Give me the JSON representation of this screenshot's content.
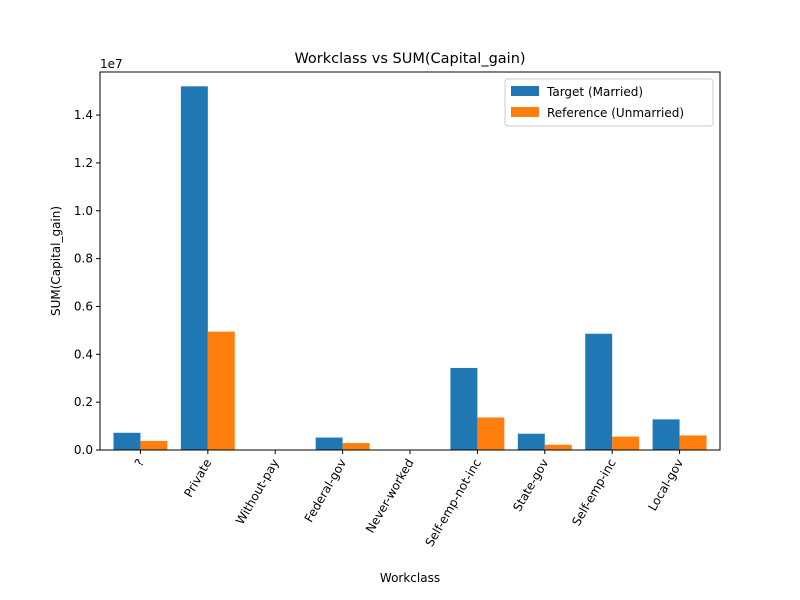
{
  "chart_data": {
    "type": "bar",
    "title": "Workclass vs SUM(Capital_gain)",
    "xlabel": "Workclass",
    "ylabel": "SUM(Capital_gain)",
    "y_offset_label": "1e7",
    "y_scale": 10000000,
    "ylim": [
      0,
      15800000
    ],
    "y_ticks": [
      0,
      2000000,
      4000000,
      6000000,
      8000000,
      10000000,
      12000000,
      14000000
    ],
    "y_tick_labels": [
      "0.0",
      "0.2",
      "0.4",
      "0.6",
      "0.8",
      "1.0",
      "1.2",
      "1.4"
    ],
    "categories": [
      "?",
      "Private",
      "Without-pay",
      "Federal-gov",
      "Never-worked",
      "Self-emp-not-inc",
      "State-gov",
      "Self-emp-inc",
      "Local-gov"
    ],
    "series": [
      {
        "name": "Target (Married)",
        "color": "#1f77b4",
        "values": [
          720000,
          15200000,
          0,
          520000,
          0,
          3430000,
          680000,
          4860000,
          1280000
        ]
      },
      {
        "name": "Reference (Unmarried)",
        "color": "#ff7f0e",
        "values": [
          380000,
          4950000,
          0,
          290000,
          0,
          1360000,
          220000,
          560000,
          610000
        ]
      }
    ],
    "legend_position": "top-right",
    "grid": false
  }
}
